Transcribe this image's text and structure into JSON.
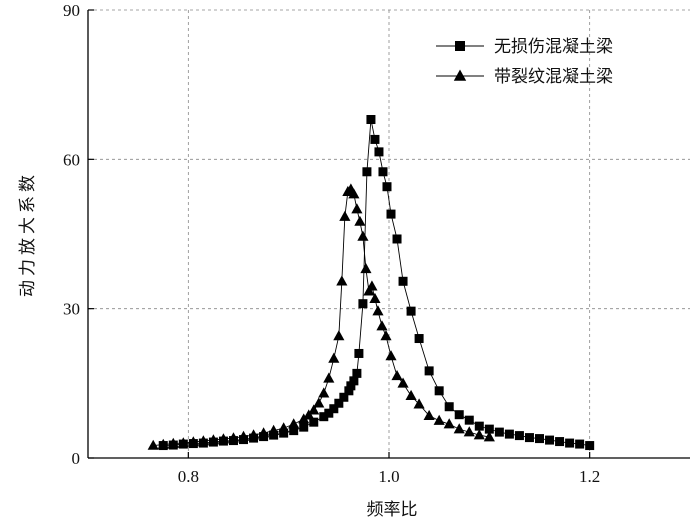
{
  "chart_data": {
    "type": "line",
    "xlabel": "频率比",
    "ylabel": "动力放大系数",
    "xlim": [
      0.7,
      1.3
    ],
    "ylim": [
      0,
      90
    ],
    "xticks": [
      0.8,
      1.0,
      1.2
    ],
    "xtick_labels": [
      "0.8",
      "1.0",
      "1.2"
    ],
    "yticks": [
      0,
      30,
      60,
      90
    ],
    "ytick_labels": [
      "0",
      "30",
      "60",
      "90"
    ],
    "grid": "dashed",
    "legend_position": "top-right",
    "series": [
      {
        "name": "无损伤混凝土梁",
        "marker": "square",
        "color": "#000000",
        "x": [
          0.775,
          0.785,
          0.795,
          0.805,
          0.815,
          0.825,
          0.835,
          0.845,
          0.855,
          0.865,
          0.875,
          0.885,
          0.895,
          0.905,
          0.915,
          0.925,
          0.935,
          0.94,
          0.945,
          0.95,
          0.955,
          0.96,
          0.962,
          0.965,
          0.968,
          0.97,
          0.974,
          0.978,
          0.982,
          0.986,
          0.99,
          0.994,
          0.998,
          1.002,
          1.008,
          1.014,
          1.022,
          1.03,
          1.04,
          1.05,
          1.06,
          1.07,
          1.08,
          1.09,
          1.1,
          1.11,
          1.12,
          1.13,
          1.14,
          1.15,
          1.16,
          1.17,
          1.18,
          1.19,
          1.2
        ],
        "y": [
          2.5,
          2.6,
          2.8,
          2.9,
          3.0,
          3.2,
          3.4,
          3.5,
          3.7,
          4.0,
          4.3,
          4.6,
          5.0,
          5.5,
          6.2,
          7.2,
          8.3,
          9.0,
          9.9,
          11.0,
          12.2,
          13.5,
          14.5,
          15.5,
          17.0,
          21.0,
          31.0,
          57.5,
          68.0,
          64.0,
          61.5,
          57.5,
          54.5,
          49.0,
          44.0,
          35.5,
          29.5,
          24.0,
          17.5,
          13.5,
          10.3,
          8.7,
          7.6,
          6.4,
          5.8,
          5.2,
          4.8,
          4.5,
          4.1,
          3.9,
          3.6,
          3.3,
          3.0,
          2.8,
          2.5
        ]
      },
      {
        "name": "带裂纹混凝土梁",
        "marker": "triangle",
        "color": "#000000",
        "x": [
          0.765,
          0.775,
          0.785,
          0.795,
          0.805,
          0.815,
          0.825,
          0.835,
          0.845,
          0.855,
          0.865,
          0.875,
          0.885,
          0.895,
          0.905,
          0.915,
          0.92,
          0.925,
          0.93,
          0.935,
          0.94,
          0.945,
          0.95,
          0.953,
          0.956,
          0.959,
          0.962,
          0.965,
          0.968,
          0.971,
          0.974,
          0.977,
          0.98,
          0.983,
          0.986,
          0.989,
          0.993,
          0.997,
          1.002,
          1.008,
          1.014,
          1.022,
          1.03,
          1.04,
          1.05,
          1.06,
          1.07,
          1.08,
          1.09,
          1.1
        ],
        "y": [
          2.5,
          2.7,
          2.9,
          3.0,
          3.2,
          3.4,
          3.6,
          3.8,
          4.0,
          4.3,
          4.6,
          5.0,
          5.5,
          6.0,
          6.8,
          7.8,
          8.6,
          9.6,
          11.0,
          13.0,
          16.0,
          20.0,
          24.5,
          35.5,
          48.5,
          53.5,
          54.0,
          53.0,
          50.0,
          47.5,
          44.5,
          38.0,
          33.5,
          34.5,
          32.0,
          29.5,
          26.5,
          24.5,
          20.5,
          16.5,
          15.0,
          12.5,
          10.8,
          8.5,
          7.5,
          6.8,
          5.8,
          5.2,
          4.6,
          4.2
        ]
      }
    ]
  }
}
